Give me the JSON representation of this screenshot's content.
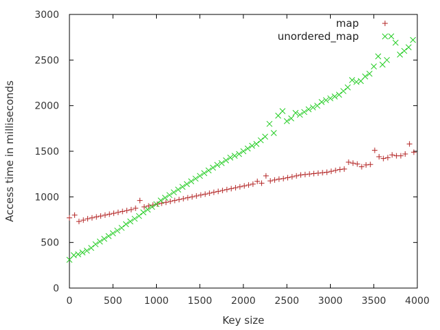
{
  "chart_data": {
    "type": "scatter",
    "title": "",
    "xlabel": "Key size",
    "ylabel": "Access time in milliseconds",
    "xlim": [
      0,
      4000
    ],
    "ylim": [
      0,
      3000
    ],
    "xticks": [
      "0",
      "500",
      "1000",
      "1500",
      "2000",
      "2500",
      "3000",
      "3500",
      "4000"
    ],
    "yticks": [
      "0",
      "500",
      "1000",
      "1500",
      "2000",
      "2500",
      "3000"
    ],
    "grid": false,
    "legend_position": "top-right",
    "series": [
      {
        "name": "map",
        "marker": "plus",
        "color": "#b22222",
        "x": [
          0,
          60,
          110,
          160,
          210,
          260,
          310,
          360,
          410,
          460,
          510,
          560,
          610,
          660,
          710,
          760,
          810,
          860,
          910,
          960,
          1010,
          1060,
          1110,
          1160,
          1210,
          1260,
          1310,
          1360,
          1410,
          1460,
          1510,
          1560,
          1610,
          1660,
          1710,
          1760,
          1810,
          1860,
          1910,
          1960,
          2010,
          2060,
          2110,
          2160,
          2210,
          2260,
          2310,
          2360,
          2410,
          2460,
          2510,
          2560,
          2610,
          2660,
          2710,
          2760,
          2810,
          2860,
          2910,
          2960,
          3010,
          3060,
          3110,
          3160,
          3210,
          3260,
          3310,
          3360,
          3410,
          3460,
          3510,
          3560,
          3610,
          3660,
          3710,
          3760,
          3810,
          3860,
          3910,
          3960
        ],
        "y": [
          770,
          800,
          730,
          745,
          760,
          770,
          780,
          790,
          800,
          810,
          820,
          830,
          840,
          850,
          860,
          875,
          960,
          890,
          900,
          910,
          920,
          930,
          940,
          950,
          960,
          970,
          980,
          990,
          1000,
          1010,
          1020,
          1030,
          1040,
          1050,
          1060,
          1070,
          1080,
          1090,
          1100,
          1110,
          1120,
          1130,
          1140,
          1170,
          1150,
          1230,
          1175,
          1185,
          1195,
          1200,
          1210,
          1220,
          1230,
          1240,
          1245,
          1250,
          1255,
          1260,
          1265,
          1270,
          1280,
          1290,
          1300,
          1305,
          1380,
          1370,
          1360,
          1330,
          1350,
          1355,
          1510,
          1440,
          1420,
          1430,
          1460,
          1450,
          1450,
          1470,
          1580,
          1490
        ]
      },
      {
        "name": "unordered_map",
        "marker": "cross",
        "color": "#22cc22",
        "x": [
          0,
          50,
          100,
          150,
          200,
          250,
          300,
          350,
          400,
          450,
          500,
          550,
          600,
          650,
          700,
          750,
          800,
          850,
          900,
          950,
          1000,
          1050,
          1100,
          1150,
          1200,
          1250,
          1300,
          1350,
          1400,
          1450,
          1500,
          1550,
          1600,
          1650,
          1700,
          1750,
          1800,
          1850,
          1900,
          1950,
          2000,
          2050,
          2100,
          2150,
          2200,
          2250,
          2300,
          2350,
          2400,
          2450,
          2500,
          2550,
          2600,
          2650,
          2700,
          2750,
          2800,
          2850,
          2900,
          2950,
          3000,
          3050,
          3100,
          3150,
          3200,
          3250,
          3300,
          3350,
          3400,
          3450,
          3500,
          3550,
          3600,
          3650,
          3700,
          3750,
          3800,
          3850,
          3900,
          3950
        ],
        "y": [
          310,
          360,
          370,
          390,
          410,
          440,
          480,
          510,
          540,
          570,
          600,
          630,
          660,
          700,
          730,
          760,
          790,
          830,
          860,
          890,
          920,
          960,
          990,
          1020,
          1050,
          1080,
          1110,
          1140,
          1170,
          1200,
          1230,
          1260,
          1290,
          1320,
          1350,
          1370,
          1400,
          1430,
          1450,
          1470,
          1500,
          1530,
          1560,
          1580,
          1620,
          1660,
          1800,
          1700,
          1890,
          1940,
          1830,
          1860,
          1920,
          1900,
          1930,
          1960,
          1980,
          2000,
          2040,
          2060,
          2080,
          2100,
          2120,
          2160,
          2200,
          2280,
          2260,
          2270,
          2320,
          2350,
          2430,
          2540,
          2450,
          2500,
          2760,
          2690,
          2560,
          2600,
          2640,
          2720
        ]
      }
    ]
  }
}
